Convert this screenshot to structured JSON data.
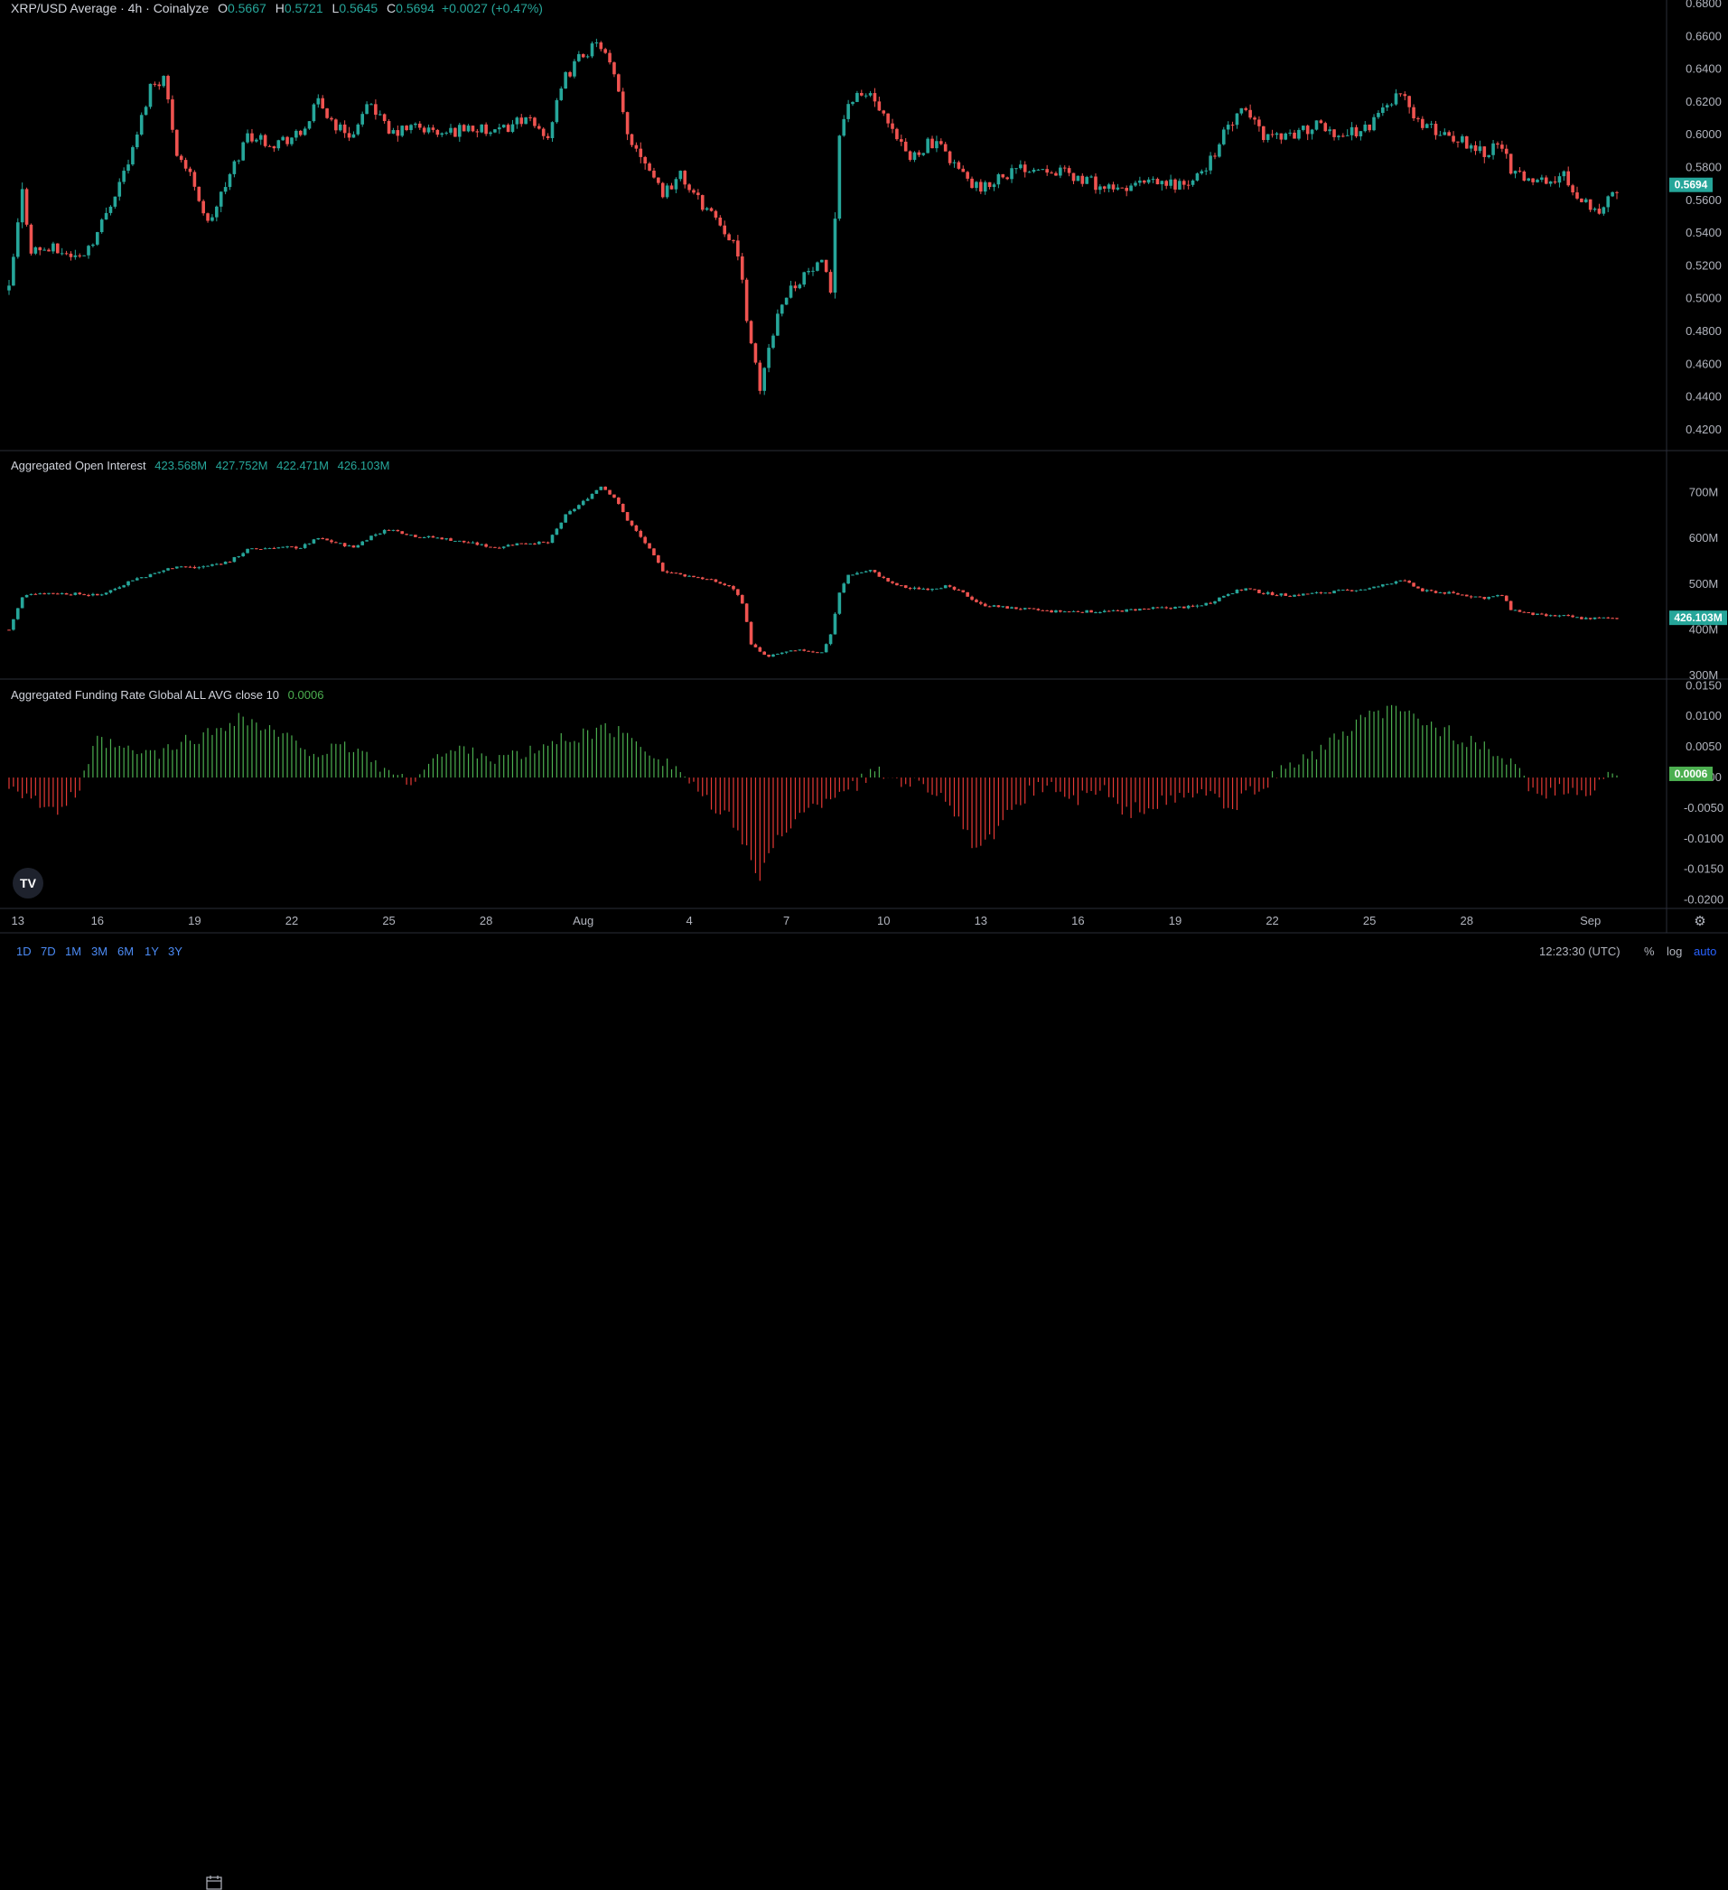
{
  "legend": {
    "title": "XRP/USD Average · 4h · Coinalyze",
    "o_label": "O",
    "o_value": "0.5667",
    "h_label": "H",
    "h_value": "0.5721",
    "l_label": "L",
    "l_value": "0.5645",
    "c_label": "C",
    "c_value": "0.5694",
    "change": "+0.0027 (+0.47%)"
  },
  "oi_legend": {
    "title": "Aggregated Open Interest",
    "o": "423.568M",
    "h": "427.752M",
    "l": "422.471M",
    "c": "426.103M"
  },
  "fr_legend": {
    "title": "Aggregated Funding Rate Global ALL AVG close 10",
    "value": "0.0006"
  },
  "ranges": [
    "1D",
    "7D",
    "1M",
    "3M",
    "6M",
    "1Y",
    "3Y"
  ],
  "clock": "12:23:30 (UTC)",
  "scale_options": {
    "percent": "%",
    "log": "log",
    "auto": "auto"
  },
  "colors": {
    "up": "#26a69a",
    "down": "#ef5350",
    "fr_up": "#4caf50",
    "fr_down": "#e53935"
  },
  "chart_data": [
    {
      "type": "candlestick",
      "name": "XRP/USD Average · 4h",
      "ylim": [
        0.41,
        0.68
      ],
      "ticks": [
        "0.6800",
        "0.6600",
        "0.6400",
        "0.6200",
        "0.6000",
        "0.5800",
        "0.5600",
        "0.5400",
        "0.5200",
        "0.5000",
        "0.4800",
        "0.4600",
        "0.4400",
        "0.4200"
      ],
      "last_value": "0.5694",
      "anchors": [
        [
          0,
          0.505
        ],
        [
          3,
          0.565
        ],
        [
          5,
          0.53
        ],
        [
          10,
          0.53
        ],
        [
          16,
          0.525
        ],
        [
          20,
          0.54
        ],
        [
          24,
          0.565
        ],
        [
          28,
          0.59
        ],
        [
          32,
          0.63
        ],
        [
          35,
          0.635
        ],
        [
          38,
          0.59
        ],
        [
          42,
          0.57
        ],
        [
          45,
          0.545
        ],
        [
          50,
          0.575
        ],
        [
          54,
          0.6
        ],
        [
          60,
          0.595
        ],
        [
          66,
          0.6
        ],
        [
          70,
          0.62
        ],
        [
          74,
          0.605
        ],
        [
          78,
          0.6
        ],
        [
          82,
          0.62
        ],
        [
          86,
          0.6
        ],
        [
          92,
          0.605
        ],
        [
          98,
          0.6
        ],
        [
          104,
          0.605
        ],
        [
          110,
          0.6
        ],
        [
          116,
          0.61
        ],
        [
          122,
          0.6
        ],
        [
          126,
          0.635
        ],
        [
          130,
          0.65
        ],
        [
          134,
          0.655
        ],
        [
          137,
          0.635
        ],
        [
          140,
          0.6
        ],
        [
          144,
          0.585
        ],
        [
          148,
          0.565
        ],
        [
          152,
          0.575
        ],
        [
          156,
          0.56
        ],
        [
          160,
          0.55
        ],
        [
          164,
          0.535
        ],
        [
          166,
          0.51
        ],
        [
          168,
          0.47
        ],
        [
          170,
          0.445
        ],
        [
          172,
          0.47
        ],
        [
          175,
          0.5
        ],
        [
          180,
          0.515
        ],
        [
          184,
          0.52
        ],
        [
          186,
          0.505
        ],
        [
          188,
          0.6
        ],
        [
          190,
          0.62
        ],
        [
          195,
          0.625
        ],
        [
          200,
          0.6
        ],
        [
          204,
          0.585
        ],
        [
          208,
          0.595
        ],
        [
          212,
          0.59
        ],
        [
          216,
          0.575
        ],
        [
          220,
          0.565
        ],
        [
          224,
          0.575
        ],
        [
          230,
          0.58
        ],
        [
          236,
          0.58
        ],
        [
          240,
          0.575
        ],
        [
          246,
          0.57
        ],
        [
          250,
          0.565
        ],
        [
          256,
          0.57
        ],
        [
          262,
          0.57
        ],
        [
          268,
          0.57
        ],
        [
          272,
          0.585
        ],
        [
          276,
          0.605
        ],
        [
          280,
          0.615
        ],
        [
          284,
          0.6
        ],
        [
          290,
          0.6
        ],
        [
          296,
          0.605
        ],
        [
          302,
          0.6
        ],
        [
          308,
          0.605
        ],
        [
          312,
          0.62
        ],
        [
          315,
          0.625
        ],
        [
          320,
          0.605
        ],
        [
          326,
          0.6
        ],
        [
          330,
          0.595
        ],
        [
          334,
          0.59
        ],
        [
          338,
          0.595
        ],
        [
          340,
          0.575
        ],
        [
          344,
          0.575
        ],
        [
          348,
          0.57
        ],
        [
          352,
          0.575
        ],
        [
          356,
          0.56
        ],
        [
          360,
          0.555
        ],
        [
          364,
          0.565
        ]
      ]
    },
    {
      "type": "candlestick",
      "name": "Aggregated Open Interest",
      "ylim": [
        300,
        780
      ],
      "ticks": [
        "700M",
        "600M",
        "500M",
        "400M",
        "300M"
      ],
      "last_value": "426.103M",
      "anchors": [
        [
          0,
          400
        ],
        [
          3,
          470
        ],
        [
          5,
          480
        ],
        [
          10,
          480
        ],
        [
          16,
          478
        ],
        [
          20,
          475
        ],
        [
          24,
          490
        ],
        [
          28,
          510
        ],
        [
          32,
          520
        ],
        [
          35,
          530
        ],
        [
          38,
          540
        ],
        [
          42,
          535
        ],
        [
          45,
          540
        ],
        [
          50,
          550
        ],
        [
          54,
          575
        ],
        [
          60,
          580
        ],
        [
          66,
          580
        ],
        [
          70,
          600
        ],
        [
          74,
          590
        ],
        [
          78,
          580
        ],
        [
          82,
          605
        ],
        [
          86,
          620
        ],
        [
          92,
          605
        ],
        [
          98,
          600
        ],
        [
          104,
          590
        ],
        [
          110,
          580
        ],
        [
          116,
          590
        ],
        [
          122,
          590
        ],
        [
          126,
          650
        ],
        [
          130,
          680
        ],
        [
          134,
          715
        ],
        [
          137,
          690
        ],
        [
          140,
          640
        ],
        [
          144,
          590
        ],
        [
          148,
          530
        ],
        [
          152,
          520
        ],
        [
          156,
          515
        ],
        [
          160,
          505
        ],
        [
          164,
          490
        ],
        [
          166,
          460
        ],
        [
          168,
          370
        ],
        [
          170,
          350
        ],
        [
          172,
          340
        ],
        [
          175,
          350
        ],
        [
          180,
          355
        ],
        [
          184,
          350
        ],
        [
          186,
          390
        ],
        [
          188,
          480
        ],
        [
          190,
          520
        ],
        [
          195,
          530
        ],
        [
          200,
          500
        ],
        [
          204,
          490
        ],
        [
          208,
          490
        ],
        [
          212,
          495
        ],
        [
          216,
          480
        ],
        [
          220,
          455
        ],
        [
          224,
          450
        ],
        [
          230,
          445
        ],
        [
          236,
          440
        ],
        [
          240,
          440
        ],
        [
          246,
          440
        ],
        [
          250,
          440
        ],
        [
          256,
          445
        ],
        [
          262,
          448
        ],
        [
          268,
          450
        ],
        [
          272,
          460
        ],
        [
          276,
          480
        ],
        [
          280,
          490
        ],
        [
          284,
          480
        ],
        [
          290,
          475
        ],
        [
          296,
          480
        ],
        [
          302,
          485
        ],
        [
          308,
          490
        ],
        [
          312,
          500
        ],
        [
          315,
          510
        ],
        [
          320,
          485
        ],
        [
          326,
          480
        ],
        [
          330,
          475
        ],
        [
          334,
          470
        ],
        [
          338,
          475
        ],
        [
          340,
          445
        ],
        [
          344,
          435
        ],
        [
          348,
          430
        ],
        [
          352,
          430
        ],
        [
          356,
          425
        ],
        [
          360,
          425
        ],
        [
          364,
          426
        ]
      ]
    },
    {
      "type": "bar",
      "name": "Aggregated Funding Rate Global ALL AVG close 10",
      "ylim": [
        -0.0205,
        0.0152
      ],
      "ticks": [
        "0.0150",
        "0.0100",
        "0.0050",
        "0.0000",
        "-0.0050",
        "-0.0100",
        "-0.0150",
        "-0.0200"
      ],
      "last_value": "0.0006",
      "anchors": [
        [
          0,
          -0.001
        ],
        [
          5,
          -0.003
        ],
        [
          10,
          -0.006
        ],
        [
          16,
          -0.002
        ],
        [
          20,
          0.006
        ],
        [
          28,
          0.004
        ],
        [
          35,
          0.004
        ],
        [
          40,
          0.006
        ],
        [
          45,
          0.007
        ],
        [
          52,
          0.01
        ],
        [
          58,
          0.008
        ],
        [
          64,
          0.006
        ],
        [
          70,
          0.004
        ],
        [
          78,
          0.005
        ],
        [
          84,
          0.002
        ],
        [
          90,
          -0.001
        ],
        [
          96,
          0.003
        ],
        [
          104,
          0.005
        ],
        [
          110,
          0.003
        ],
        [
          118,
          0.004
        ],
        [
          124,
          0.006
        ],
        [
          130,
          0.007
        ],
        [
          136,
          0.008
        ],
        [
          142,
          0.006
        ],
        [
          148,
          0.003
        ],
        [
          152,
          0.001
        ],
        [
          156,
          -0.002
        ],
        [
          160,
          -0.006
        ],
        [
          164,
          -0.007
        ],
        [
          168,
          -0.013
        ],
        [
          170,
          -0.018
        ],
        [
          172,
          -0.012
        ],
        [
          176,
          -0.008
        ],
        [
          180,
          -0.006
        ],
        [
          184,
          -0.004
        ],
        [
          188,
          -0.002
        ],
        [
          192,
          -0.001
        ],
        [
          196,
          0.001
        ],
        [
          200,
          0.0
        ],
        [
          206,
          -0.001
        ],
        [
          212,
          -0.003
        ],
        [
          216,
          -0.009
        ],
        [
          220,
          -0.012
        ],
        [
          224,
          -0.009
        ],
        [
          228,
          -0.004
        ],
        [
          232,
          -0.002
        ],
        [
          236,
          -0.001
        ],
        [
          240,
          -0.004
        ],
        [
          244,
          -0.003
        ],
        [
          248,
          -0.002
        ],
        [
          252,
          -0.006
        ],
        [
          256,
          -0.005
        ],
        [
          262,
          -0.004
        ],
        [
          268,
          -0.003
        ],
        [
          272,
          -0.002
        ],
        [
          276,
          -0.006
        ],
        [
          280,
          -0.003
        ],
        [
          284,
          -0.001
        ],
        [
          290,
          0.002
        ],
        [
          296,
          0.004
        ],
        [
          302,
          0.007
        ],
        [
          308,
          0.01
        ],
        [
          312,
          0.011
        ],
        [
          318,
          0.01
        ],
        [
          324,
          0.008
        ],
        [
          330,
          0.006
        ],
        [
          336,
          0.004
        ],
        [
          340,
          0.002
        ],
        [
          344,
          -0.001
        ],
        [
          348,
          -0.003
        ],
        [
          352,
          -0.002
        ],
        [
          356,
          -0.003
        ],
        [
          360,
          -0.001
        ],
        [
          364,
          0.0006
        ]
      ]
    }
  ],
  "x_axis": {
    "ticks": [
      {
        "label": "13",
        "i": 2
      },
      {
        "label": "16",
        "i": 20
      },
      {
        "label": "19",
        "i": 42
      },
      {
        "label": "22",
        "i": 64
      },
      {
        "label": "25",
        "i": 86
      },
      {
        "label": "28",
        "i": 108
      },
      {
        "label": "Aug",
        "i": 130
      },
      {
        "label": "4",
        "i": 154
      },
      {
        "label": "7",
        "i": 176
      },
      {
        "label": "10",
        "i": 198
      },
      {
        "label": "13",
        "i": 220
      },
      {
        "label": "16",
        "i": 242
      },
      {
        "label": "19",
        "i": 264
      },
      {
        "label": "22",
        "i": 286
      },
      {
        "label": "25",
        "i": 308
      },
      {
        "label": "28",
        "i": 330
      },
      {
        "label": "Sep",
        "i": 358
      }
    ]
  }
}
